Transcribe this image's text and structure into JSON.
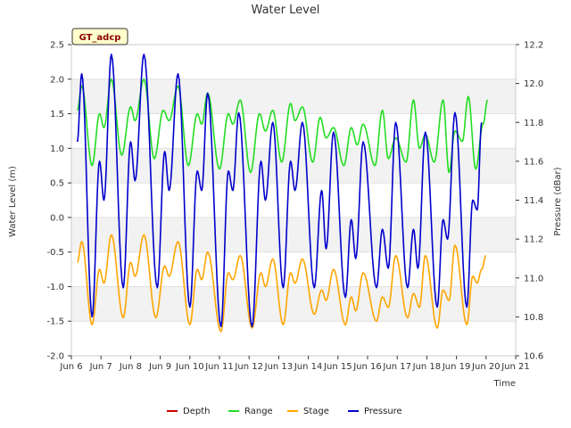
{
  "chart_data": {
    "type": "line",
    "title": "Water Level",
    "xlabel": "Time",
    "ylabel": "Water Level (m)",
    "y2label": "Pressure (dBar)",
    "badge": "GT_adcp",
    "xlim": [
      6,
      21
    ],
    "ylim": [
      -2.0,
      2.5
    ],
    "y2lim": [
      10.6,
      12.2
    ],
    "x_ticks": [
      {
        "value": 6,
        "label": "Jun 6"
      },
      {
        "value": 7,
        "label": "Jun 7"
      },
      {
        "value": 8,
        "label": "Jun 8"
      },
      {
        "value": 9,
        "label": "Jun 9"
      },
      {
        "value": 10,
        "label": "Jun 10"
      },
      {
        "value": 11,
        "label": "Jun 11"
      },
      {
        "value": 12,
        "label": "Jun 12"
      },
      {
        "value": 13,
        "label": "Jun 13"
      },
      {
        "value": 14,
        "label": "Jun 14"
      },
      {
        "value": 15,
        "label": "Jun 15"
      },
      {
        "value": 16,
        "label": "Jun 16"
      },
      {
        "value": 17,
        "label": "Jun 17"
      },
      {
        "value": 18,
        "label": "Jun 18"
      },
      {
        "value": 19,
        "label": "Jun 19"
      },
      {
        "value": 20,
        "label": "Jun 20"
      },
      {
        "value": 21,
        "label": "Jun 21"
      }
    ],
    "y_ticks": [
      {
        "value": 2.5,
        "label": "2.5"
      },
      {
        "value": 2.0,
        "label": "2.0"
      },
      {
        "value": 1.5,
        "label": "1.5"
      },
      {
        "value": 1.0,
        "label": "1.0"
      },
      {
        "value": 0.5,
        "label": "0.5"
      },
      {
        "value": 0.0,
        "label": "0.0"
      },
      {
        "value": -0.5,
        "label": "-0.5"
      },
      {
        "value": -1.0,
        "label": "-1.0"
      },
      {
        "value": -1.5,
        "label": "-1.5"
      },
      {
        "value": -2.0,
        "label": "-2.0"
      }
    ],
    "y2_ticks": [
      {
        "value": 12.2,
        "label": "12.2"
      },
      {
        "value": 12.0,
        "label": "12.0"
      },
      {
        "value": 11.8,
        "label": "11.8"
      },
      {
        "value": 11.6,
        "label": "11.6"
      },
      {
        "value": 11.4,
        "label": "11.4"
      },
      {
        "value": 11.2,
        "label": "11.2"
      },
      {
        "value": 11.0,
        "label": "11.0"
      },
      {
        "value": 10.8,
        "label": "10.8"
      },
      {
        "value": 10.6,
        "label": "10.6"
      }
    ],
    "legend": [
      {
        "name": "Depth",
        "color": "#cc0000"
      },
      {
        "name": "Range",
        "color": "#22dd22"
      },
      {
        "name": "Stage",
        "color": "#ffa500"
      },
      {
        "name": "Pressure",
        "color": "#0000cc"
      }
    ],
    "series": [
      {
        "name": "Pressure",
        "axis": "right",
        "color": "#0000cc",
        "extrema": [
          [
            6.2,
            11.7
          ],
          [
            6.35,
            12.05
          ],
          [
            6.7,
            10.8
          ],
          [
            6.95,
            11.6
          ],
          [
            7.1,
            11.4
          ],
          [
            7.35,
            12.15
          ],
          [
            7.75,
            10.95
          ],
          [
            8.0,
            11.7
          ],
          [
            8.15,
            11.5
          ],
          [
            8.45,
            12.15
          ],
          [
            8.9,
            10.95
          ],
          [
            9.15,
            11.65
          ],
          [
            9.3,
            11.45
          ],
          [
            9.6,
            12.05
          ],
          [
            10.0,
            10.85
          ],
          [
            10.25,
            11.55
          ],
          [
            10.4,
            11.45
          ],
          [
            10.6,
            11.95
          ],
          [
            11.05,
            10.75
          ],
          [
            11.3,
            11.55
          ],
          [
            11.45,
            11.45
          ],
          [
            11.65,
            11.85
          ],
          [
            12.1,
            10.75
          ],
          [
            12.4,
            11.6
          ],
          [
            12.55,
            11.4
          ],
          [
            12.8,
            11.8
          ],
          [
            13.15,
            10.95
          ],
          [
            13.4,
            11.6
          ],
          [
            13.55,
            11.45
          ],
          [
            13.8,
            11.8
          ],
          [
            14.2,
            10.95
          ],
          [
            14.45,
            11.45
          ],
          [
            14.6,
            11.15
          ],
          [
            14.85,
            11.75
          ],
          [
            15.25,
            10.9
          ],
          [
            15.45,
            11.3
          ],
          [
            15.6,
            11.1
          ],
          [
            15.85,
            11.7
          ],
          [
            16.3,
            10.95
          ],
          [
            16.5,
            11.25
          ],
          [
            16.7,
            11.05
          ],
          [
            16.95,
            11.8
          ],
          [
            17.35,
            10.95
          ],
          [
            17.55,
            11.25
          ],
          [
            17.7,
            11.05
          ],
          [
            17.95,
            11.75
          ],
          [
            18.35,
            10.85
          ],
          [
            18.55,
            11.3
          ],
          [
            18.7,
            11.2
          ],
          [
            18.95,
            11.85
          ],
          [
            19.35,
            10.85
          ],
          [
            19.55,
            11.4
          ],
          [
            19.7,
            11.35
          ],
          [
            19.85,
            11.8
          ]
        ]
      },
      {
        "name": "Range",
        "axis": "left",
        "color": "#22dd22",
        "extrema": [
          [
            6.2,
            1.55
          ],
          [
            6.35,
            1.9
          ],
          [
            6.7,
            0.75
          ],
          [
            6.95,
            1.5
          ],
          [
            7.1,
            1.3
          ],
          [
            7.35,
            2.0
          ],
          [
            7.7,
            0.9
          ],
          [
            8.0,
            1.6
          ],
          [
            8.15,
            1.4
          ],
          [
            8.45,
            2.0
          ],
          [
            8.8,
            0.85
          ],
          [
            9.1,
            1.55
          ],
          [
            9.3,
            1.4
          ],
          [
            9.6,
            1.9
          ],
          [
            9.95,
            0.75
          ],
          [
            10.25,
            1.5
          ],
          [
            10.4,
            1.35
          ],
          [
            10.6,
            1.8
          ],
          [
            11.0,
            0.7
          ],
          [
            11.3,
            1.5
          ],
          [
            11.45,
            1.35
          ],
          [
            11.7,
            1.7
          ],
          [
            12.05,
            0.65
          ],
          [
            12.35,
            1.5
          ],
          [
            12.55,
            1.25
          ],
          [
            12.8,
            1.55
          ],
          [
            13.1,
            0.8
          ],
          [
            13.4,
            1.65
          ],
          [
            13.55,
            1.4
          ],
          [
            13.8,
            1.6
          ],
          [
            14.15,
            0.8
          ],
          [
            14.4,
            1.45
          ],
          [
            14.6,
            1.15
          ],
          [
            14.85,
            1.3
          ],
          [
            15.2,
            0.75
          ],
          [
            15.45,
            1.3
          ],
          [
            15.65,
            1.05
          ],
          [
            15.85,
            1.35
          ],
          [
            16.25,
            0.75
          ],
          [
            16.5,
            1.55
          ],
          [
            16.7,
            0.85
          ],
          [
            16.95,
            1.15
          ],
          [
            17.3,
            0.8
          ],
          [
            17.55,
            1.7
          ],
          [
            17.75,
            1.0
          ],
          [
            17.95,
            1.2
          ],
          [
            18.25,
            0.8
          ],
          [
            18.55,
            1.7
          ],
          [
            18.75,
            0.65
          ],
          [
            18.95,
            1.25
          ],
          [
            19.2,
            1.1
          ],
          [
            19.4,
            1.75
          ],
          [
            19.65,
            0.7
          ],
          [
            19.9,
            1.35
          ],
          [
            20.05,
            1.7
          ]
        ]
      },
      {
        "name": "Stage",
        "axis": "left",
        "color": "#ffa500",
        "extrema": [
          [
            6.2,
            -0.65
          ],
          [
            6.35,
            -0.35
          ],
          [
            6.7,
            -1.55
          ],
          [
            6.95,
            -0.75
          ],
          [
            7.1,
            -0.95
          ],
          [
            7.35,
            -0.25
          ],
          [
            7.75,
            -1.45
          ],
          [
            8.0,
            -0.65
          ],
          [
            8.15,
            -0.85
          ],
          [
            8.45,
            -0.25
          ],
          [
            8.85,
            -1.45
          ],
          [
            9.15,
            -0.7
          ],
          [
            9.3,
            -0.85
          ],
          [
            9.6,
            -0.35
          ],
          [
            10.0,
            -1.55
          ],
          [
            10.25,
            -0.75
          ],
          [
            10.4,
            -0.9
          ],
          [
            10.6,
            -0.5
          ],
          [
            11.05,
            -1.65
          ],
          [
            11.3,
            -0.8
          ],
          [
            11.45,
            -0.9
          ],
          [
            11.7,
            -0.55
          ],
          [
            12.1,
            -1.6
          ],
          [
            12.4,
            -0.8
          ],
          [
            12.55,
            -1.0
          ],
          [
            12.8,
            -0.6
          ],
          [
            13.15,
            -1.55
          ],
          [
            13.4,
            -0.8
          ],
          [
            13.55,
            -0.95
          ],
          [
            13.8,
            -0.6
          ],
          [
            14.2,
            -1.4
          ],
          [
            14.45,
            -1.05
          ],
          [
            14.6,
            -1.2
          ],
          [
            14.85,
            -0.75
          ],
          [
            15.25,
            -1.55
          ],
          [
            15.45,
            -1.15
          ],
          [
            15.6,
            -1.35
          ],
          [
            15.85,
            -0.8
          ],
          [
            16.3,
            -1.5
          ],
          [
            16.5,
            -1.15
          ],
          [
            16.7,
            -1.3
          ],
          [
            16.95,
            -0.55
          ],
          [
            17.35,
            -1.45
          ],
          [
            17.55,
            -1.1
          ],
          [
            17.75,
            -1.3
          ],
          [
            17.95,
            -0.55
          ],
          [
            18.35,
            -1.6
          ],
          [
            18.55,
            -1.05
          ],
          [
            18.75,
            -1.2
          ],
          [
            18.95,
            -0.4
          ],
          [
            19.35,
            -1.55
          ],
          [
            19.55,
            -0.85
          ],
          [
            19.7,
            -0.95
          ],
          [
            19.85,
            -0.75
          ],
          [
            20.0,
            -0.55
          ]
        ]
      }
    ]
  }
}
